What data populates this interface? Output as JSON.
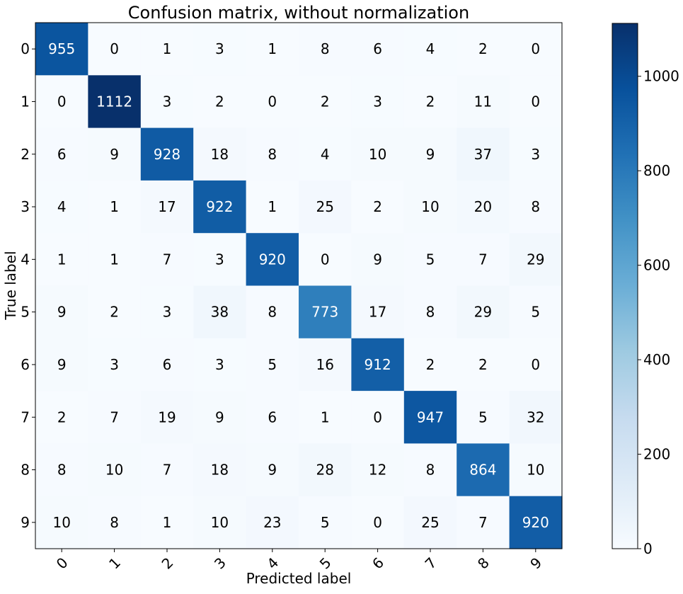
{
  "chart_data": {
    "type": "heatmap",
    "title": "Confusion matrix, without normalization",
    "xlabel": "Predicted label",
    "ylabel": "True label",
    "x_tick_labels": [
      "0",
      "1",
      "2",
      "3",
      "4",
      "5",
      "6",
      "7",
      "8",
      "9"
    ],
    "y_tick_labels": [
      "0",
      "1",
      "2",
      "3",
      "4",
      "5",
      "6",
      "7",
      "8",
      "9"
    ],
    "matrix": [
      [
        955,
        0,
        1,
        3,
        1,
        8,
        6,
        4,
        2,
        0
      ],
      [
        0,
        1112,
        3,
        2,
        0,
        2,
        3,
        2,
        11,
        0
      ],
      [
        6,
        9,
        928,
        18,
        8,
        4,
        10,
        9,
        37,
        3
      ],
      [
        4,
        1,
        17,
        922,
        1,
        25,
        2,
        10,
        20,
        8
      ],
      [
        1,
        1,
        7,
        3,
        920,
        0,
        9,
        5,
        7,
        29
      ],
      [
        9,
        2,
        3,
        38,
        8,
        773,
        17,
        8,
        29,
        5
      ],
      [
        9,
        3,
        6,
        3,
        5,
        16,
        912,
        2,
        2,
        0
      ],
      [
        2,
        7,
        19,
        9,
        6,
        1,
        0,
        947,
        5,
        32
      ],
      [
        8,
        10,
        7,
        18,
        9,
        28,
        12,
        8,
        864,
        10
      ],
      [
        10,
        8,
        1,
        10,
        23,
        5,
        0,
        25,
        7,
        920
      ]
    ],
    "colormap": "Blues",
    "colorbar": {
      "range": [
        0,
        1112
      ],
      "ticks": [
        0,
        200,
        400,
        600,
        800,
        1000
      ],
      "placement": "right"
    },
    "grid": false,
    "text_color_light": "#ffffff",
    "text_color_dark": "#000000"
  }
}
